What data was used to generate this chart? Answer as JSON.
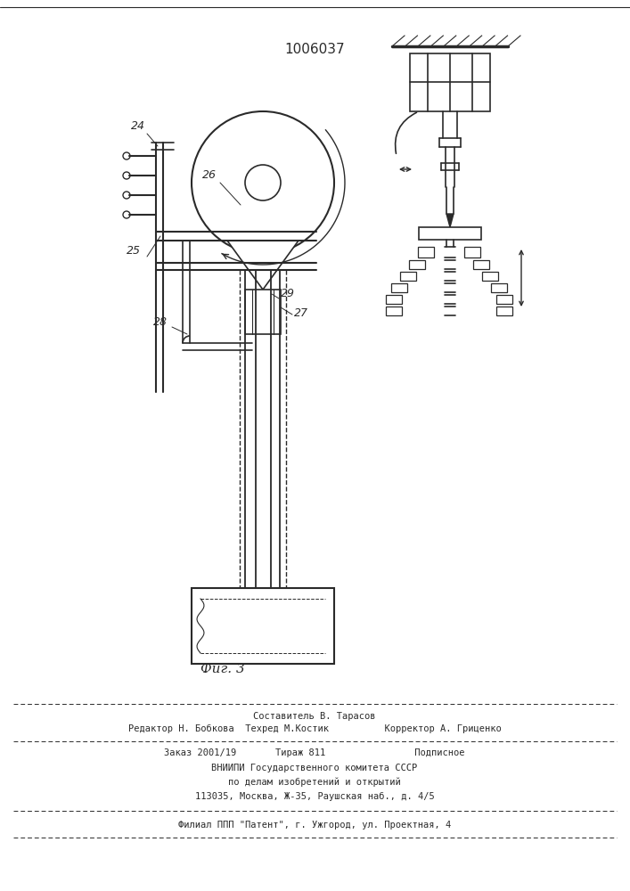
{
  "patent_number": "1006037",
  "fig_label": "Фиг. 3",
  "bg_color": "#ffffff",
  "line_color": "#2a2a2a",
  "footer_line1": "Составитель В. Тарасов",
  "footer_line2": "Редактор Н. Бобкова  Техред М.Костик          Корректор А. Гриценко",
  "footer_line3": "Заказ 2001/19       Тираж 811                Подписное",
  "footer_line4": "ВНИИПИ Государственного комитета СССР",
  "footer_line5": "по делам изобретений и открытий",
  "footer_line6": "113035, Москва, Ж-35, Раушская наб., д. 4/5",
  "footer_line7": "Филиал ППП \"Патент\", г. Ужгород, ул. Проектная, 4"
}
